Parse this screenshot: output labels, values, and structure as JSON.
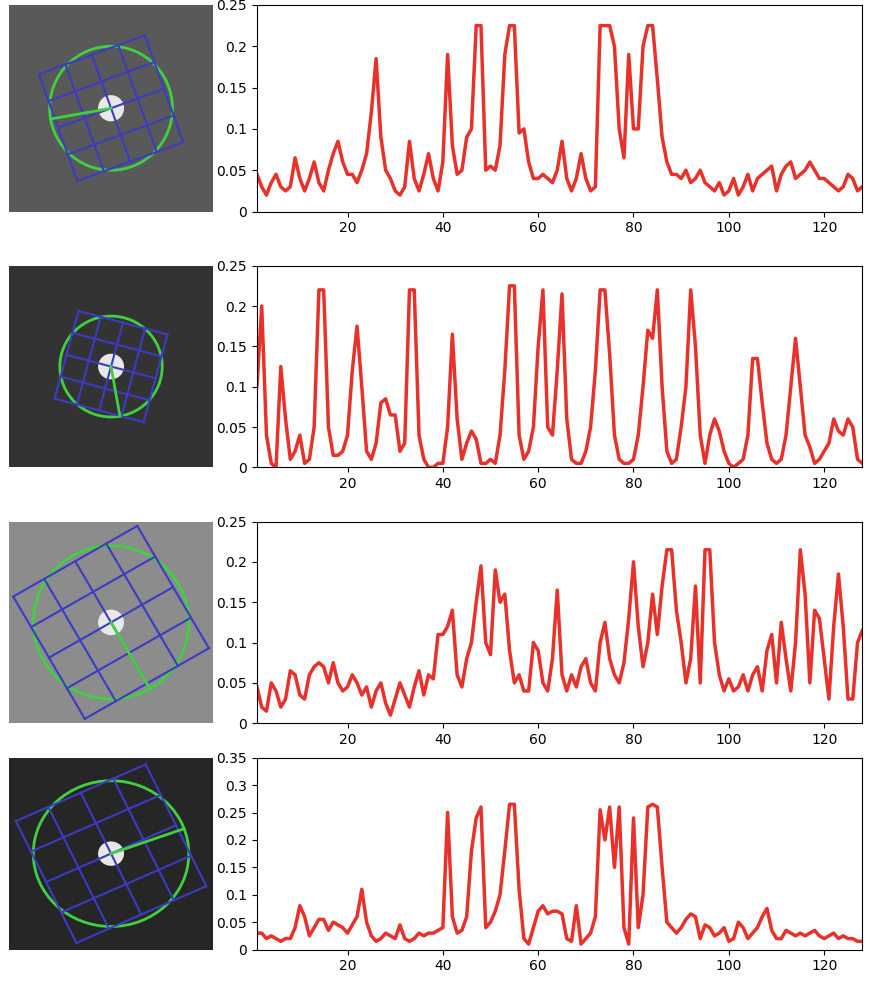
{
  "chart_data": [
    {
      "type": "line",
      "color": "#e8312a",
      "x": [
        1,
        2,
        3,
        4,
        5,
        6,
        7,
        8,
        9,
        10,
        11,
        12,
        13,
        14,
        15,
        16,
        17,
        18,
        19,
        20,
        21,
        22,
        23,
        24,
        25,
        26,
        27,
        28,
        29,
        30,
        31,
        32,
        33,
        34,
        35,
        36,
        37,
        38,
        39,
        40,
        41,
        42,
        43,
        44,
        45,
        46,
        47,
        48,
        49,
        50,
        51,
        52,
        53,
        54,
        55,
        56,
        57,
        58,
        59,
        60,
        61,
        62,
        63,
        64,
        65,
        66,
        67,
        68,
        69,
        70,
        71,
        72,
        73,
        74,
        75,
        76,
        77,
        78,
        79,
        80,
        81,
        82,
        83,
        84,
        85,
        86,
        87,
        88,
        89,
        90,
        91,
        92,
        93,
        94,
        95,
        96,
        97,
        98,
        99,
        100,
        101,
        102,
        103,
        104,
        105,
        106,
        107,
        108,
        109,
        110,
        111,
        112,
        113,
        114,
        115,
        116,
        117,
        118,
        119,
        120,
        121,
        122,
        123,
        124,
        125,
        126,
        127,
        128
      ],
      "values": [
        0.045,
        0.03,
        0.02,
        0.035,
        0.045,
        0.03,
        0.025,
        0.03,
        0.065,
        0.04,
        0.025,
        0.04,
        0.06,
        0.035,
        0.025,
        0.05,
        0.07,
        0.085,
        0.06,
        0.045,
        0.045,
        0.035,
        0.05,
        0.07,
        0.12,
        0.185,
        0.09,
        0.05,
        0.04,
        0.025,
        0.02,
        0.03,
        0.085,
        0.04,
        0.025,
        0.045,
        0.07,
        0.04,
        0.025,
        0.06,
        0.19,
        0.08,
        0.045,
        0.05,
        0.09,
        0.1,
        0.225,
        0.225,
        0.05,
        0.055,
        0.05,
        0.08,
        0.19,
        0.225,
        0.225,
        0.095,
        0.1,
        0.06,
        0.04,
        0.04,
        0.045,
        0.04,
        0.035,
        0.05,
        0.085,
        0.04,
        0.025,
        0.04,
        0.07,
        0.04,
        0.025,
        0.03,
        0.225,
        0.225,
        0.225,
        0.2,
        0.1,
        0.065,
        0.19,
        0.1,
        0.1,
        0.2,
        0.225,
        0.225,
        0.16,
        0.09,
        0.06,
        0.045,
        0.045,
        0.04,
        0.05,
        0.035,
        0.04,
        0.05,
        0.035,
        0.03,
        0.025,
        0.035,
        0.02,
        0.025,
        0.04,
        0.02,
        0.03,
        0.045,
        0.025,
        0.04,
        0.045,
        0.05,
        0.055,
        0.025,
        0.045,
        0.055,
        0.06,
        0.04,
        0.045,
        0.05,
        0.06,
        0.05,
        0.04,
        0.04,
        0.035,
        0.03,
        0.025,
        0.03,
        0.045,
        0.04,
        0.025,
        0.03
      ],
      "xlim": [
        1,
        128
      ],
      "xticks": [
        20,
        40,
        60,
        80,
        100,
        120
      ],
      "ylim": [
        0,
        0.25
      ],
      "yticks": [
        0,
        0.05,
        0.1,
        0.15,
        0.2,
        0.25
      ]
    },
    {
      "type": "line",
      "color": "#e8312a",
      "x": [
        1,
        2,
        3,
        4,
        5,
        6,
        7,
        8,
        9,
        10,
        11,
        12,
        13,
        14,
        15,
        16,
        17,
        18,
        19,
        20,
        21,
        22,
        23,
        24,
        25,
        26,
        27,
        28,
        29,
        30,
        31,
        32,
        33,
        34,
        35,
        36,
        37,
        38,
        39,
        40,
        41,
        42,
        43,
        44,
        45,
        46,
        47,
        48,
        49,
        50,
        51,
        52,
        53,
        54,
        55,
        56,
        57,
        58,
        59,
        60,
        61,
        62,
        63,
        64,
        65,
        66,
        67,
        68,
        69,
        70,
        71,
        72,
        73,
        74,
        75,
        76,
        77,
        78,
        79,
        80,
        81,
        82,
        83,
        84,
        85,
        86,
        87,
        88,
        89,
        90,
        91,
        92,
        93,
        94,
        95,
        96,
        97,
        98,
        99,
        100,
        101,
        102,
        103,
        104,
        105,
        106,
        107,
        108,
        109,
        110,
        111,
        112,
        113,
        114,
        115,
        116,
        117,
        118,
        119,
        120,
        121,
        122,
        123,
        124,
        125,
        126,
        127,
        128
      ],
      "values": [
        0.1,
        0.2,
        0.04,
        0.005,
        0.0,
        0.125,
        0.06,
        0.01,
        0.02,
        0.04,
        0.005,
        0.01,
        0.05,
        0.22,
        0.22,
        0.05,
        0.015,
        0.015,
        0.02,
        0.04,
        0.12,
        0.175,
        0.1,
        0.02,
        0.01,
        0.03,
        0.08,
        0.085,
        0.065,
        0.065,
        0.02,
        0.03,
        0.22,
        0.22,
        0.04,
        0.01,
        0.0,
        0.0,
        0.005,
        0.005,
        0.05,
        0.165,
        0.06,
        0.01,
        0.03,
        0.045,
        0.035,
        0.005,
        0.005,
        0.01,
        0.005,
        0.04,
        0.12,
        0.225,
        0.225,
        0.04,
        0.01,
        0.02,
        0.05,
        0.15,
        0.22,
        0.05,
        0.04,
        0.12,
        0.215,
        0.06,
        0.01,
        0.005,
        0.005,
        0.02,
        0.05,
        0.12,
        0.22,
        0.22,
        0.14,
        0.04,
        0.01,
        0.005,
        0.005,
        0.01,
        0.04,
        0.1,
        0.17,
        0.16,
        0.22,
        0.1,
        0.02,
        0.005,
        0.01,
        0.05,
        0.1,
        0.22,
        0.15,
        0.04,
        0.005,
        0.04,
        0.06,
        0.045,
        0.02,
        0.005,
        0.0,
        0.005,
        0.01,
        0.04,
        0.135,
        0.135,
        0.08,
        0.03,
        0.01,
        0.005,
        0.01,
        0.04,
        0.1,
        0.16,
        0.1,
        0.04,
        0.025,
        0.005,
        0.01,
        0.02,
        0.03,
        0.06,
        0.045,
        0.04,
        0.06,
        0.05,
        0.01,
        0.005
      ],
      "xlim": [
        1,
        128
      ],
      "xticks": [
        20,
        40,
        60,
        80,
        100,
        120
      ],
      "ylim": [
        0,
        0.25
      ],
      "yticks": [
        0,
        0.05,
        0.1,
        0.15,
        0.2,
        0.25
      ]
    },
    {
      "type": "line",
      "color": "#e8312a",
      "x": [
        1,
        2,
        3,
        4,
        5,
        6,
        7,
        8,
        9,
        10,
        11,
        12,
        13,
        14,
        15,
        16,
        17,
        18,
        19,
        20,
        21,
        22,
        23,
        24,
        25,
        26,
        27,
        28,
        29,
        30,
        31,
        32,
        33,
        34,
        35,
        36,
        37,
        38,
        39,
        40,
        41,
        42,
        43,
        44,
        45,
        46,
        47,
        48,
        49,
        50,
        51,
        52,
        53,
        54,
        55,
        56,
        57,
        58,
        59,
        60,
        61,
        62,
        63,
        64,
        65,
        66,
        67,
        68,
        69,
        70,
        71,
        72,
        73,
        74,
        75,
        76,
        77,
        78,
        79,
        80,
        81,
        82,
        83,
        84,
        85,
        86,
        87,
        88,
        89,
        90,
        91,
        92,
        93,
        94,
        95,
        96,
        97,
        98,
        99,
        100,
        101,
        102,
        103,
        104,
        105,
        106,
        107,
        108,
        109,
        110,
        111,
        112,
        113,
        114,
        115,
        116,
        117,
        118,
        119,
        120,
        121,
        122,
        123,
        124,
        125,
        126,
        127,
        128
      ],
      "values": [
        0.045,
        0.02,
        0.015,
        0.05,
        0.04,
        0.02,
        0.03,
        0.065,
        0.06,
        0.035,
        0.03,
        0.06,
        0.07,
        0.075,
        0.07,
        0.05,
        0.075,
        0.05,
        0.04,
        0.045,
        0.06,
        0.05,
        0.035,
        0.045,
        0.02,
        0.04,
        0.05,
        0.025,
        0.01,
        0.03,
        0.05,
        0.035,
        0.02,
        0.045,
        0.065,
        0.035,
        0.06,
        0.055,
        0.11,
        0.11,
        0.12,
        0.14,
        0.06,
        0.045,
        0.08,
        0.1,
        0.15,
        0.195,
        0.1,
        0.085,
        0.19,
        0.15,
        0.16,
        0.09,
        0.05,
        0.06,
        0.04,
        0.04,
        0.1,
        0.09,
        0.05,
        0.04,
        0.08,
        0.165,
        0.06,
        0.04,
        0.06,
        0.045,
        0.07,
        0.08,
        0.05,
        0.04,
        0.1,
        0.125,
        0.08,
        0.06,
        0.05,
        0.075,
        0.13,
        0.2,
        0.12,
        0.07,
        0.1,
        0.16,
        0.11,
        0.17,
        0.215,
        0.215,
        0.14,
        0.1,
        0.05,
        0.08,
        0.17,
        0.05,
        0.215,
        0.215,
        0.1,
        0.06,
        0.04,
        0.055,
        0.04,
        0.045,
        0.06,
        0.04,
        0.06,
        0.07,
        0.04,
        0.09,
        0.11,
        0.05,
        0.125,
        0.08,
        0.04,
        0.1,
        0.215,
        0.16,
        0.05,
        0.14,
        0.13,
        0.08,
        0.03,
        0.12,
        0.185,
        0.12,
        0.03,
        0.03,
        0.1,
        0.115
      ],
      "xlim": [
        1,
        128
      ],
      "xticks": [
        20,
        40,
        60,
        80,
        100,
        120
      ],
      "ylim": [
        0,
        0.25
      ],
      "yticks": [
        0,
        0.05,
        0.1,
        0.15,
        0.2,
        0.25
      ]
    },
    {
      "type": "line",
      "color": "#e8312a",
      "x": [
        1,
        2,
        3,
        4,
        5,
        6,
        7,
        8,
        9,
        10,
        11,
        12,
        13,
        14,
        15,
        16,
        17,
        18,
        19,
        20,
        21,
        22,
        23,
        24,
        25,
        26,
        27,
        28,
        29,
        30,
        31,
        32,
        33,
        34,
        35,
        36,
        37,
        38,
        39,
        40,
        41,
        42,
        43,
        44,
        45,
        46,
        47,
        48,
        49,
        50,
        51,
        52,
        53,
        54,
        55,
        56,
        57,
        58,
        59,
        60,
        61,
        62,
        63,
        64,
        65,
        66,
        67,
        68,
        69,
        70,
        71,
        72,
        73,
        74,
        75,
        76,
        77,
        78,
        79,
        80,
        81,
        82,
        83,
        84,
        85,
        86,
        87,
        88,
        89,
        90,
        91,
        92,
        93,
        94,
        95,
        96,
        97,
        98,
        99,
        100,
        101,
        102,
        103,
        104,
        105,
        106,
        107,
        108,
        109,
        110,
        111,
        112,
        113,
        114,
        115,
        116,
        117,
        118,
        119,
        120,
        121,
        122,
        123,
        124,
        125,
        126,
        127,
        128
      ],
      "values": [
        0.03,
        0.03,
        0.02,
        0.025,
        0.02,
        0.015,
        0.02,
        0.02,
        0.04,
        0.08,
        0.06,
        0.025,
        0.04,
        0.055,
        0.055,
        0.035,
        0.05,
        0.045,
        0.04,
        0.03,
        0.045,
        0.06,
        0.11,
        0.05,
        0.025,
        0.015,
        0.02,
        0.03,
        0.025,
        0.02,
        0.045,
        0.02,
        0.015,
        0.02,
        0.03,
        0.025,
        0.03,
        0.03,
        0.035,
        0.04,
        0.25,
        0.06,
        0.03,
        0.035,
        0.06,
        0.18,
        0.24,
        0.26,
        0.04,
        0.05,
        0.07,
        0.1,
        0.18,
        0.265,
        0.265,
        0.11,
        0.02,
        0.01,
        0.04,
        0.07,
        0.08,
        0.065,
        0.07,
        0.07,
        0.065,
        0.02,
        0.015,
        0.08,
        0.01,
        0.02,
        0.03,
        0.06,
        0.255,
        0.2,
        0.26,
        0.15,
        0.26,
        0.04,
        0.01,
        0.24,
        0.04,
        0.1,
        0.26,
        0.265,
        0.26,
        0.15,
        0.05,
        0.04,
        0.03,
        0.04,
        0.055,
        0.065,
        0.06,
        0.02,
        0.045,
        0.04,
        0.025,
        0.03,
        0.04,
        0.015,
        0.02,
        0.05,
        0.04,
        0.02,
        0.03,
        0.04,
        0.06,
        0.075,
        0.035,
        0.02,
        0.02,
        0.035,
        0.03,
        0.025,
        0.03,
        0.025,
        0.03,
        0.035,
        0.025,
        0.02,
        0.025,
        0.03,
        0.02,
        0.025,
        0.02,
        0.02,
        0.015,
        0.015
      ],
      "xlim": [
        1,
        128
      ],
      "xticks": [
        20,
        40,
        60,
        80,
        100,
        120
      ],
      "ylim": [
        0,
        0.35
      ],
      "yticks": [
        0,
        0.05,
        0.1,
        0.15,
        0.2,
        0.25,
        0.3,
        0.35
      ]
    }
  ]
}
